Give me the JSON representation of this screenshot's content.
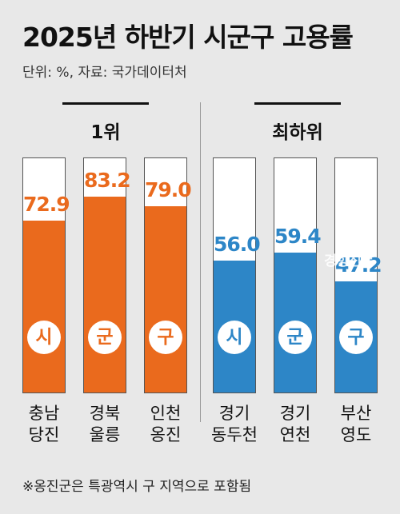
{
  "header": {
    "title": "2025년 하반기 시군구 고용률",
    "unit": "단위: %, 자료: 국가데이터처"
  },
  "groups": [
    {
      "label": "1위"
    },
    {
      "label": "최하위"
    }
  ],
  "note": "※옹진군은 특광역시 구 지역으로 포함됨",
  "watermark": "경향신문",
  "colors": {
    "top": "#ea6a1d",
    "bottom": "#2d86c7"
  },
  "chart_data": {
    "type": "bar",
    "title": "2025년 하반기 시군구 고용률",
    "ylim": [
      0,
      100
    ],
    "categories": [
      "충남 당진",
      "경북 울릉",
      "인천 옹진",
      "경기 동두천",
      "경기 연천",
      "부산 영도"
    ],
    "series": [
      {
        "name": "1위",
        "values": [
          72.9,
          83.2,
          79.0,
          null,
          null,
          null
        ]
      },
      {
        "name": "최하위",
        "values": [
          null,
          null,
          null,
          56.0,
          59.4,
          47.2
        ]
      }
    ],
    "bars": [
      {
        "line1": "충남",
        "line2": "당진",
        "value": 72.9,
        "value_label": "72.9",
        "badge": "시",
        "group": "top"
      },
      {
        "line1": "경북",
        "line2": "울릉",
        "value": 83.2,
        "value_label": "83.2",
        "badge": "군",
        "group": "top"
      },
      {
        "line1": "인천",
        "line2": "옹진",
        "value": 79.0,
        "value_label": "79.0",
        "badge": "구",
        "group": "top"
      },
      {
        "line1": "경기",
        "line2": "동두천",
        "value": 56.0,
        "value_label": "56.0",
        "badge": "시",
        "group": "bottom"
      },
      {
        "line1": "경기",
        "line2": "연천",
        "value": 59.4,
        "value_label": "59.4",
        "badge": "군",
        "group": "bottom"
      },
      {
        "line1": "부산",
        "line2": "영도",
        "value": 47.2,
        "value_label": "47.2",
        "badge": "구",
        "group": "bottom"
      }
    ]
  }
}
